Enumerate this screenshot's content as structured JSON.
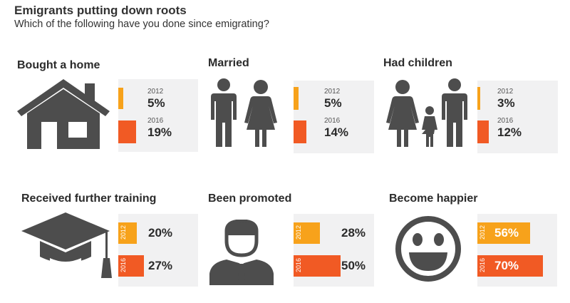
{
  "title": "Emigrants putting down roots",
  "subtitle": "Which of the following have you done since emigrating?",
  "colors": {
    "y2012": "#f7a21b",
    "y2016": "#f15a24",
    "icon": "#4d4d4d",
    "box": "#f1f1f2"
  },
  "chart_data": {
    "type": "bar",
    "series_years": [
      "2012",
      "2016"
    ],
    "categories": [
      "Bought a home",
      "Married",
      "Had children",
      "Received further training",
      "Been promoted",
      "Become happier"
    ],
    "series": [
      {
        "name": "2012",
        "values": [
          5,
          5,
          3,
          20,
          28,
          56
        ]
      },
      {
        "name": "2016",
        "values": [
          19,
          14,
          12,
          27,
          50,
          70
        ]
      }
    ],
    "unit": "%"
  },
  "panels": [
    {
      "title": "Bought a home",
      "icon": "house-icon",
      "y2012": "2012",
      "v2012": "5%",
      "y2016": "2016",
      "v2016": "19%"
    },
    {
      "title": "Married",
      "icon": "couple-icon",
      "y2012": "2012",
      "v2012": "5%",
      "y2016": "2016",
      "v2016": "14%"
    },
    {
      "title": "Had children",
      "icon": "family-icon",
      "y2012": "2012",
      "v2012": "3%",
      "y2016": "2016",
      "v2016": "12%"
    },
    {
      "title": "Received further training",
      "icon": "graduation-cap-icon",
      "y2012": "2012",
      "v2012": "20%",
      "y2016": "2016",
      "v2016": "27%"
    },
    {
      "title": "Been promoted",
      "icon": "businessman-icon",
      "y2012": "2012",
      "v2012": "28%",
      "y2016": "2016",
      "v2016": "50%"
    },
    {
      "title": "Become happier",
      "icon": "smiley-icon",
      "y2012": "2012",
      "v2012": "56%",
      "y2016": "2016",
      "v2016": "70%"
    }
  ]
}
